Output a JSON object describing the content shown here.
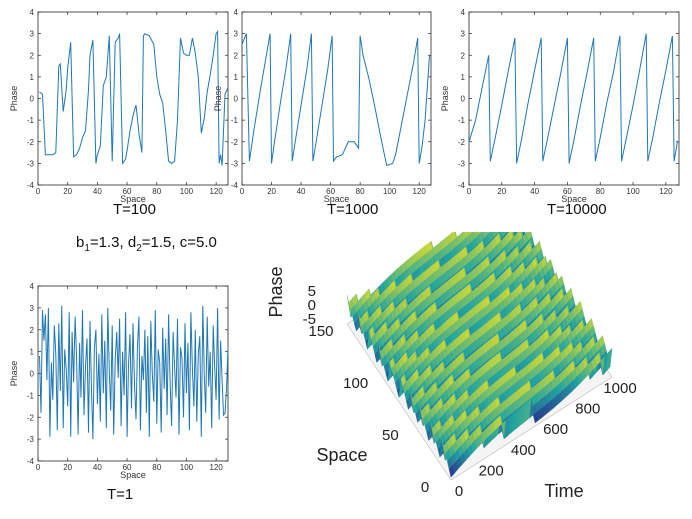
{
  "colors": {
    "line": "#1f77b4",
    "axis": "#262626",
    "surface_low": "#2a1f8c",
    "surface_mid": "#21a4a0",
    "surface_high": "#f5e41e"
  },
  "params": {
    "b_symbol": "b",
    "b_sub": "1",
    "b_value": "=1.3, ",
    "d_symbol": "d",
    "d_sub": "2",
    "d_value": "=1.5, ",
    "c_text": "c=5.0"
  },
  "chart_data": [
    {
      "id": "t100",
      "type": "line",
      "caption": "T=100",
      "xlabel": "Space",
      "ylabel": "Phase",
      "xlim": [
        0,
        128
      ],
      "ylim": [
        -4,
        4
      ],
      "xticks": [
        0,
        20,
        40,
        60,
        80,
        100,
        120
      ],
      "yticks": [
        -4,
        -3,
        -2,
        -1,
        0,
        1,
        2,
        3,
        4
      ],
      "x": [
        1,
        3,
        5,
        8,
        10,
        12,
        14,
        15,
        17,
        19,
        20,
        22,
        24,
        26,
        28,
        30,
        32,
        34,
        35,
        37,
        39,
        40,
        42,
        44,
        46,
        48,
        50,
        52,
        54,
        55,
        57,
        59,
        60,
        62,
        64,
        66,
        68,
        70,
        71,
        72,
        75,
        78,
        80,
        82,
        84,
        86,
        88,
        90,
        92,
        94,
        96,
        98,
        100,
        102,
        104,
        106,
        108,
        110,
        112,
        114,
        116,
        118,
        120,
        121,
        122,
        123,
        124,
        126,
        128
      ],
      "y": [
        0.3,
        0.2,
        -2.6,
        -2.6,
        -2.6,
        -2.5,
        1.5,
        1.6,
        -0.6,
        0.4,
        1.4,
        2.6,
        -2.7,
        -2.6,
        -2.3,
        -1.8,
        -1.5,
        0.4,
        2.0,
        2.7,
        -3.0,
        -2.6,
        -2.2,
        0.6,
        1.0,
        2.9,
        -2.9,
        2.6,
        2.8,
        3.0,
        -3.0,
        -2.8,
        -2.4,
        -1.5,
        -0.8,
        -0.3,
        -1.6,
        -2.5,
        2.9,
        3.0,
        2.9,
        2.5,
        1.0,
        0.2,
        -0.2,
        -1.5,
        -2.9,
        -3.0,
        -2.9,
        -1.0,
        2.8,
        2.1,
        2.0,
        2.0,
        2.8,
        2.1,
        1.0,
        -1.6,
        -0.9,
        0.3,
        1.1,
        2.0,
        3.0,
        3.1,
        -3.0,
        -2.6,
        -3.1,
        0.2,
        0.5
      ]
    },
    {
      "id": "t1000",
      "type": "line",
      "caption": "T=1000",
      "xlabel": "Space",
      "ylabel": "Phase",
      "xlim": [
        0,
        128
      ],
      "ylim": [
        -4,
        4
      ],
      "xticks": [
        0,
        20,
        40,
        60,
        80,
        100,
        120
      ],
      "yticks": [
        -4,
        -3,
        -2,
        -1,
        0,
        1,
        2,
        3,
        4
      ],
      "x": [
        0,
        3,
        5,
        8,
        12,
        16,
        19,
        20,
        22,
        26,
        30,
        33,
        34,
        36,
        40,
        44,
        47,
        48,
        50,
        54,
        58,
        61,
        62,
        64,
        68,
        72,
        76,
        79,
        80,
        82,
        86,
        90,
        94,
        98,
        102,
        104,
        108,
        112,
        116,
        119,
        120,
        122,
        124,
        127
      ],
      "y": [
        2.5,
        3.0,
        -2.9,
        -1.5,
        0.2,
        1.8,
        3.0,
        -3.0,
        -2.0,
        -0.2,
        1.5,
        3.0,
        -2.9,
        -2.0,
        -0.3,
        1.4,
        3.0,
        -2.9,
        -2.1,
        -0.4,
        1.3,
        2.9,
        -2.9,
        -2.7,
        -2.6,
        -2.0,
        -2.0,
        -2.3,
        2.9,
        2.0,
        0.9,
        -0.4,
        -1.8,
        -3.1,
        -3.0,
        -2.6,
        -1.2,
        0.2,
        1.6,
        2.8,
        -3.0,
        -2.2,
        -1.0,
        2.0
      ]
    },
    {
      "id": "t10000",
      "type": "line",
      "caption": "T=10000",
      "xlabel": "Space",
      "ylabel": "Phase",
      "xlim": [
        0,
        128
      ],
      "ylim": [
        -4,
        4
      ],
      "xticks": [
        0,
        20,
        40,
        60,
        80,
        100,
        120
      ],
      "yticks": [
        -4,
        -3,
        -2,
        -1,
        0,
        1,
        2,
        3,
        4
      ],
      "x": [
        0,
        4,
        8,
        12,
        13,
        16,
        20,
        24,
        28,
        29,
        32,
        36,
        40,
        44,
        45,
        48,
        52,
        56,
        60,
        61,
        64,
        68,
        72,
        76,
        77,
        80,
        84,
        88,
        92,
        93,
        96,
        100,
        104,
        108,
        109,
        112,
        116,
        120,
        124,
        125,
        127,
        128
      ],
      "y": [
        -2.0,
        -1.0,
        0.5,
        2.0,
        -2.9,
        -1.8,
        -0.3,
        1.3,
        2.8,
        -3.0,
        -1.9,
        -0.2,
        1.3,
        2.8,
        -2.9,
        -1.8,
        -0.3,
        1.2,
        2.8,
        -3.0,
        -1.9,
        -0.3,
        1.2,
        2.8,
        -2.9,
        -1.8,
        -0.2,
        1.2,
        2.9,
        -2.9,
        -1.8,
        -0.3,
        1.3,
        3.0,
        -2.9,
        -1.8,
        -0.2,
        1.3,
        2.9,
        -2.9,
        -2.0,
        -2.0
      ]
    },
    {
      "id": "t1",
      "type": "line",
      "caption": "T=1",
      "xlabel": "Space",
      "ylabel": "Phase",
      "xlim": [
        0,
        128
      ],
      "ylim": [
        -4,
        4
      ],
      "xticks": [
        0,
        20,
        40,
        60,
        80,
        100,
        120
      ],
      "yticks": [
        -4,
        -3,
        -2,
        -1,
        0,
        1,
        2,
        3,
        4
      ],
      "x": [
        1,
        2,
        3,
        4,
        5,
        6,
        7,
        8,
        9,
        10,
        11,
        12,
        13,
        14,
        15,
        16,
        17,
        18,
        19,
        20,
        21,
        22,
        23,
        24,
        25,
        26,
        27,
        28,
        29,
        30,
        31,
        32,
        33,
        34,
        35,
        36,
        37,
        38,
        39,
        40,
        41,
        42,
        43,
        44,
        45,
        46,
        47,
        48,
        49,
        50,
        51,
        52,
        53,
        54,
        55,
        56,
        57,
        58,
        59,
        60,
        61,
        62,
        63,
        64,
        65,
        66,
        67,
        68,
        69,
        70,
        71,
        72,
        73,
        74,
        75,
        76,
        77,
        78,
        79,
        80,
        81,
        82,
        83,
        84,
        85,
        86,
        87,
        88,
        89,
        90,
        91,
        92,
        93,
        94,
        95,
        96,
        97,
        98,
        99,
        100,
        101,
        102,
        103,
        104,
        105,
        106,
        107,
        108,
        109,
        110,
        111,
        112,
        113,
        114,
        115,
        116,
        117,
        118,
        119,
        120,
        121,
        122,
        123,
        124,
        125,
        126,
        127,
        128
      ],
      "y": [
        0.8,
        -1.8,
        2.9,
        1.5,
        2.7,
        -0.3,
        3.0,
        -2.9,
        0.5,
        -1.2,
        2.2,
        0.9,
        -2.6,
        2.3,
        -0.8,
        3.1,
        -2.5,
        1.1,
        0.2,
        -1.5,
        2.8,
        -2.9,
        1.9,
        -0.4,
        2.6,
        0.7,
        -2.8,
        1.4,
        -1.1,
        2.9,
        -1.9,
        0.3,
        1.6,
        -2.7,
        2.4,
        -0.6,
        -3.0,
        1.2,
        2.0,
        -1.4,
        0.9,
        -2.2,
        2.7,
        -0.9,
        1.5,
        -2.5,
        3.0,
        0.1,
        -1.7,
        2.2,
        -2.8,
        0.6,
        1.9,
        -0.2,
        2.5,
        -2.4,
        1.0,
        -1.0,
        2.8,
        -2.9,
        0.4,
        1.8,
        -1.6,
        2.3,
        -0.5,
        -2.1,
        1.3,
        2.6,
        -2.6,
        0.8,
        -0.3,
        2.0,
        -1.8,
        1.7,
        -2.9,
        2.4,
        0.0,
        -1.3,
        2.9,
        -2.3,
        1.1,
        0.5,
        -2.7,
        2.1,
        -0.7,
        1.6,
        -1.9,
        2.7,
        -0.4,
        -2.4,
        1.9,
        0.3,
        -1.1,
        2.5,
        -2.8,
        1.2,
        0.7,
        -2.0,
        2.3,
        -0.9,
        1.4,
        -2.6,
        2.8,
        0.2,
        -1.5,
        2.0,
        -2.2,
        0.9,
        1.7,
        -2.9,
        3.1,
        -0.1,
        -1.8,
        2.6,
        -0.6,
        1.0,
        -2.5,
        2.2,
        0.4,
        -1.2,
        3.0,
        -2.1,
        1.5,
        -0.3,
        -1.9,
        -1.8,
        -0.7,
        1.2
      ]
    },
    {
      "id": "surface",
      "type": "surface3d",
      "xlabel": "Time",
      "ylabel": "Space",
      "zlabel": "Phase",
      "xlim": [
        0,
        1000
      ],
      "ylim": [
        0,
        150
      ],
      "zlim": [
        -5,
        5
      ],
      "xticks": [
        0,
        200,
        400,
        600,
        800,
        1000
      ],
      "yticks": [
        0,
        50,
        100,
        150
      ],
      "zticks": [
        -5,
        0,
        5
      ]
    }
  ]
}
